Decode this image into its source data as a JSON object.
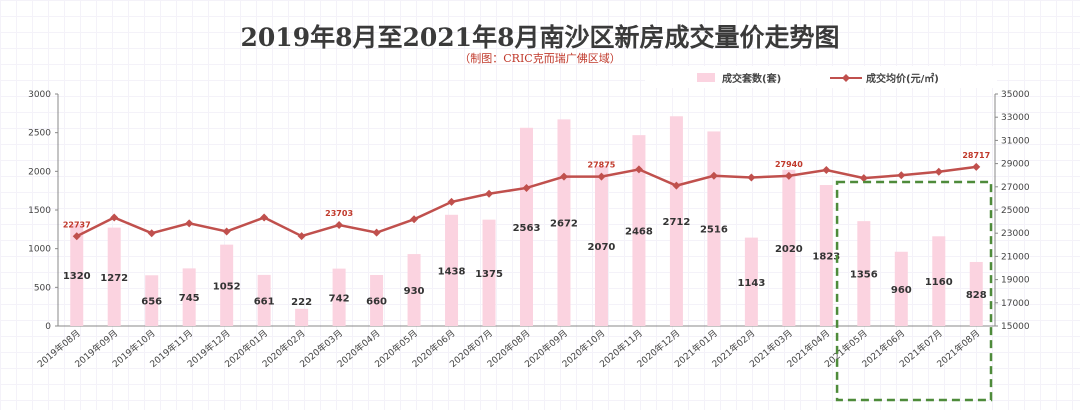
{
  "chart_data": {
    "type": "bar+line",
    "title": "2019年8月至2021年8月南沙区新房成交量价走势图",
    "subtitle": "（制图：CRIC克而瑞广佛区域）",
    "categories": [
      "2019年08月",
      "2019年09月",
      "2019年10月",
      "2019年11月",
      "2019年12月",
      "2020年01月",
      "2020年02月",
      "2020年03月",
      "2020年04月",
      "2020年05月",
      "2020年06月",
      "2020年07月",
      "2020年08月",
      "2020年09月",
      "2020年10月",
      "2020年11月",
      "2020年12月",
      "2021年01月",
      "2021年02月",
      "2021年03月",
      "2021年04月",
      "2021年05月",
      "2021年06月",
      "2021年07月",
      "2021年08月"
    ],
    "series": [
      {
        "name": "成交套数(套)",
        "type": "bar",
        "axis": "left",
        "color": "#fbd3e0",
        "values": [
          1320,
          1272,
          656,
          745,
          1052,
          661,
          222,
          742,
          660,
          930,
          1438,
          1375,
          2563,
          2672,
          2070,
          2468,
          2712,
          2516,
          1143,
          2020,
          1823,
          1356,
          960,
          1160,
          828
        ]
      },
      {
        "name": "成交均价(元/㎡)",
        "type": "line",
        "axis": "right",
        "color": "#c0504d",
        "values": [
          22737,
          24350,
          23000,
          23850,
          23150,
          24350,
          22750,
          23703,
          23050,
          24200,
          25700,
          26400,
          26900,
          27875,
          27875,
          28500,
          27100,
          27950,
          27800,
          27940,
          28450,
          27750,
          28000,
          28300,
          28717
        ],
        "labeled_values": {
          "0": "22737",
          "7": "23703",
          "14": "27875",
          "19": "27940",
          "24": "28717"
        }
      }
    ],
    "ylim_left": [
      0,
      3000
    ],
    "yticks_left": [
      0,
      500,
      1000,
      1500,
      2000,
      2500,
      3000
    ],
    "ylim_right": [
      15000,
      35000
    ],
    "yticks_right": [
      15000,
      17000,
      19000,
      21000,
      23000,
      25000,
      27000,
      29000,
      31000,
      33000,
      35000
    ],
    "legend_position": "top-right",
    "grid": false,
    "highlight": {
      "from_index": 21,
      "to_index": 24,
      "style": "dashed",
      "color": "#4e8b3a"
    }
  }
}
